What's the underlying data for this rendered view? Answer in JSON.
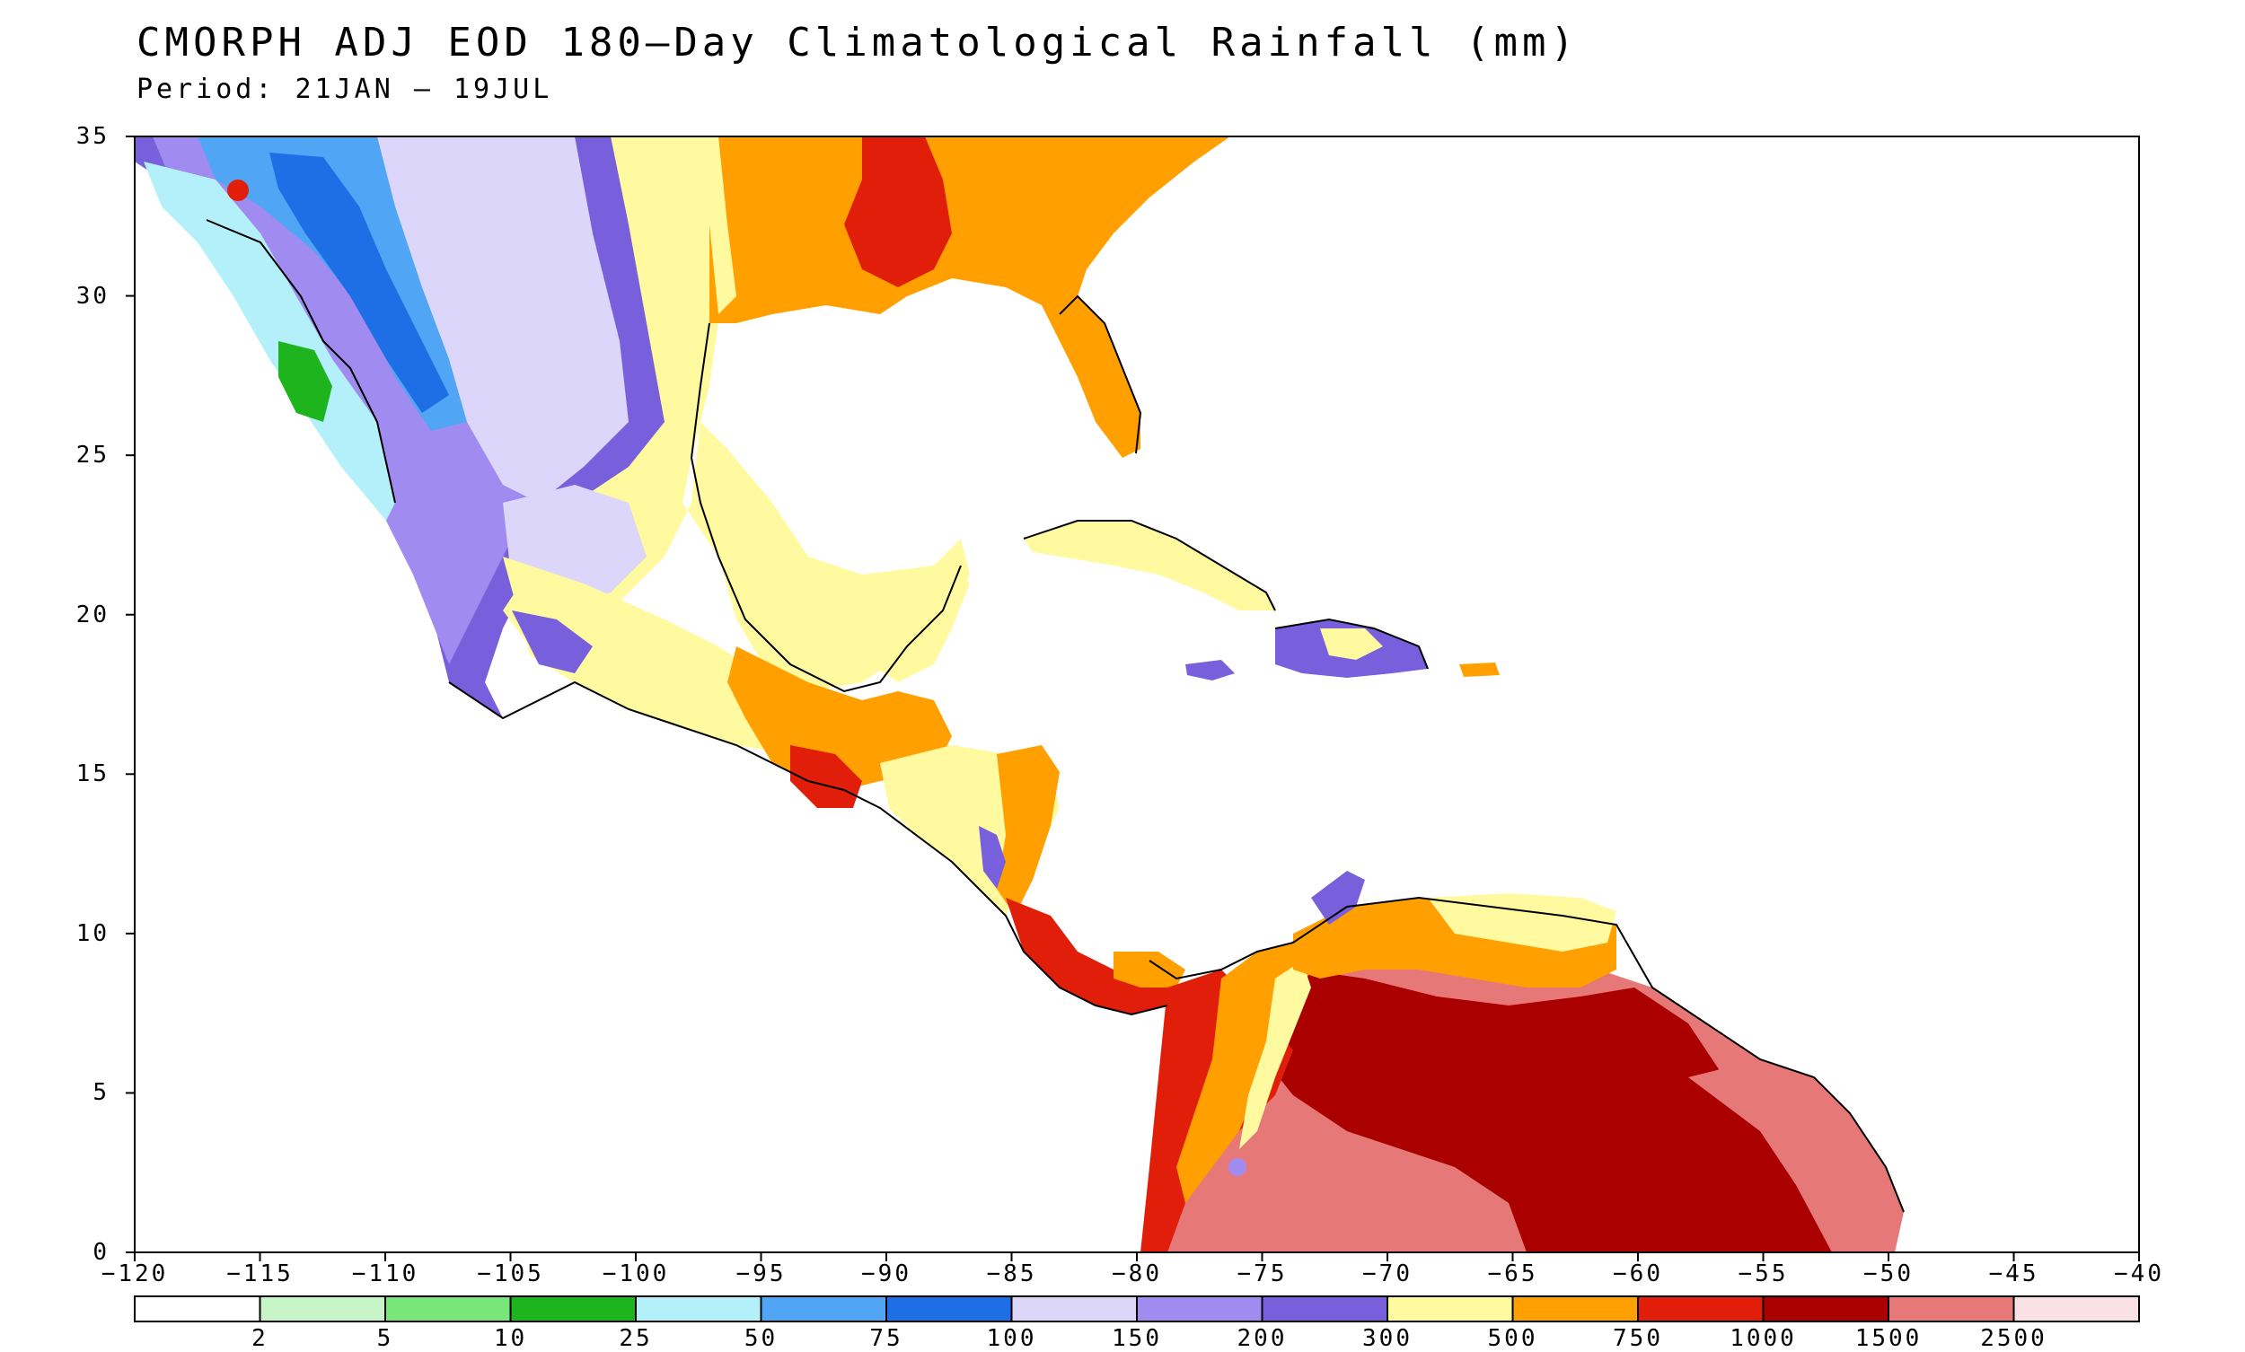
{
  "title": "CMORPH ADJ EOD 180–Day Climatological Rainfall (mm)",
  "subtitle": "Period: 21JAN – 19JUL",
  "map": {
    "lon_range": [
      -120,
      -40
    ],
    "lat_range": [
      0,
      35
    ],
    "lat_ticks": [
      "0",
      "5",
      "10",
      "15",
      "20",
      "25",
      "30",
      "35"
    ],
    "lon_ticks": [
      "−120",
      "−115",
      "−110",
      "−105",
      "−100",
      "−95",
      "−90",
      "−85",
      "−80",
      "−75",
      "−70",
      "−65",
      "−60",
      "−55",
      "−50",
      "−45",
      "−40"
    ]
  },
  "colorbar": {
    "levels": [
      "2",
      "5",
      "10",
      "25",
      "50",
      "75",
      "100",
      "150",
      "200",
      "300",
      "500",
      "750",
      "1000",
      "1500",
      "2500"
    ],
    "colors": [
      "#ffffff",
      "#c8f5c8",
      "#78e678",
      "#1eb41e",
      "#b4f0fa",
      "#50a5f5",
      "#1e6ee6",
      "#dcd7fa",
      "#a08cf0",
      "#7860dc",
      "#fffaa0",
      "#ffa000",
      "#e11e0a",
      "#aa0000",
      "#e67878",
      "#fae1e6"
    ]
  }
}
